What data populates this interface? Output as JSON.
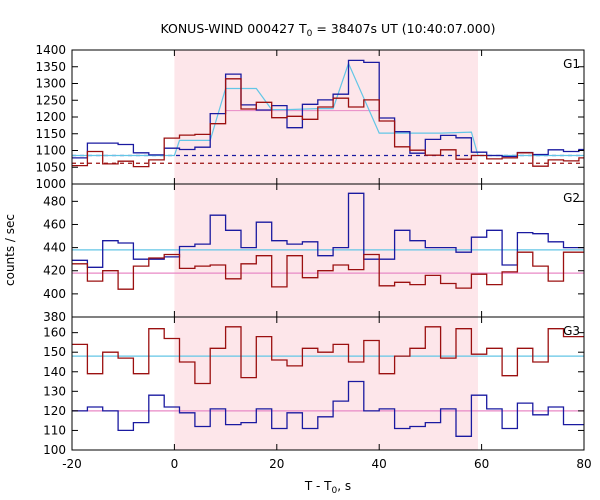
{
  "chart_data": {
    "type": "line",
    "title": "KONUS-WIND 000427 T",
    "title_sub": "0",
    "title_rest": " = 38407s UT (10:40:07.000)",
    "xlabel": "T - T",
    "xlabel_sub": "0",
    "xlabel_rest": ", s",
    "ylabel": "counts / sec",
    "xlim": [
      -20,
      80
    ],
    "xticks": [
      "-20",
      "0",
      "20",
      "40",
      "60",
      "80"
    ],
    "shaded_interval": [
      0,
      59.3
    ],
    "colors": {
      "blue": "#1a1aa0",
      "red": "#9b1010",
      "fit": "#63c6e6",
      "bg_line": "#e889c6",
      "shade": "#fde6ea"
    },
    "panels": [
      {
        "label": "G1",
        "ylim": [
          1000,
          1400
        ],
        "yticks": [
          "1000",
          "1050",
          "1100",
          "1150",
          "1200",
          "1250",
          "1300",
          "1350",
          "1400"
        ],
        "background_levels": {
          "blue": 1085,
          "red": 1062
        },
        "series": [
          {
            "color_key": "blue",
            "edges": [
              -20,
              -17,
              -14,
              -11,
              -8,
              -5,
              -2,
              1,
              4,
              7,
              10,
              13,
              16,
              19,
              22,
              25,
              28,
              31,
              34,
              37,
              40,
              43,
              46,
              49,
              52,
              55,
              58,
              61,
              64,
              67,
              70,
              73,
              76,
              79,
              80
            ],
            "values": [
              1078,
              1122,
              1122,
              1118,
              1093,
              1087,
              1107,
              1103,
              1110,
              1210,
              1328,
              1236,
              1221,
              1234,
              1168,
              1238,
              1251,
              1268,
              1369,
              1363,
              1197,
              1156,
              1092,
              1133,
              1145,
              1138,
              1095,
              1085,
              1082,
              1094,
              1088,
              1102,
              1097,
              1103
            ]
          },
          {
            "color_key": "red",
            "edges": [
              -20,
              -17,
              -14,
              -11,
              -8,
              -5,
              -2,
              1,
              4,
              7,
              10,
              13,
              16,
              19,
              22,
              25,
              28,
              31,
              34,
              37,
              40,
              43,
              46,
              49,
              52,
              55,
              58,
              61,
              64,
              67,
              70,
              73,
              76,
              79,
              80
            ],
            "values": [
              1055,
              1097,
              1060,
              1068,
              1052,
              1072,
              1137,
              1146,
              1148,
              1180,
              1314,
              1224,
              1244,
              1198,
              1202,
              1193,
              1230,
              1256,
              1230,
              1251,
              1188,
              1111,
              1101,
              1086,
              1102,
              1074,
              1085,
              1075,
              1078,
              1093,
              1053,
              1072,
              1069,
              1078
            ]
          }
        ],
        "fits": [
          {
            "x": [
              -20,
              0,
              1,
              7,
              10,
              16,
              19,
              22,
              28,
              31,
              34,
              40,
              46,
              52,
              58,
              59.3,
              80
            ],
            "y": [
              1085,
              1085,
              1130,
              1130,
              1285,
              1285,
              1222,
              1222,
              1225,
              1225,
              1360,
              1152,
              1152,
              1152,
              1155,
              1085,
              1085
            ]
          }
        ],
        "guide": {
          "x": [
            10,
            40
          ],
          "y": [
            1219,
            1219
          ]
        }
      },
      {
        "label": "G2",
        "ylim": [
          380,
          495
        ],
        "yticks": [
          "380",
          "400",
          "420",
          "440",
          "460",
          "480"
        ],
        "series": [
          {
            "color_key": "blue",
            "edges": [
              -20,
              -17,
              -14,
              -11,
              -8,
              -5,
              -2,
              1,
              4,
              7,
              10,
              13,
              16,
              19,
              22,
              25,
              28,
              31,
              34,
              37,
              40,
              43,
              46,
              49,
              52,
              55,
              58,
              61,
              64,
              67,
              70,
              73,
              76,
              79,
              80
            ],
            "values": [
              429,
              423,
              446,
              444,
              430,
              430,
              432,
              441,
              443,
              468,
              455,
              440,
              462,
              446,
              443,
              445,
              433,
              440,
              487,
              430,
              430,
              455,
              446,
              440,
              440,
              436,
              449,
              455,
              425,
              453,
              452,
              445,
              440,
              440
            ]
          },
          {
            "color_key": "red",
            "edges": [
              -20,
              -17,
              -14,
              -11,
              -8,
              -5,
              -2,
              1,
              4,
              7,
              10,
              13,
              16,
              19,
              22,
              25,
              28,
              31,
              34,
              37,
              40,
              43,
              46,
              49,
              52,
              55,
              58,
              61,
              64,
              67,
              70,
              73,
              76,
              79,
              80
            ],
            "values": [
              426,
              411,
              420,
              404,
              424,
              431,
              434,
              422,
              424,
              425,
              413,
              426,
              433,
              406,
              433,
              414,
              420,
              425,
              421,
              434,
              407,
              410,
              408,
              416,
              409,
              405,
              417,
              408,
              419,
              436,
              424,
              411,
              436,
              436
            ]
          }
        ],
        "fits": [
          {
            "x": [
              -20,
              80
            ],
            "y": [
              438,
              438
            ]
          },
          {
            "x": [
              -20,
              80
            ],
            "y": [
              418,
              418
            ]
          }
        ]
      },
      {
        "label": "G3",
        "ylim": [
          100,
          168
        ],
        "yticks": [
          "100",
          "110",
          "120",
          "130",
          "140",
          "150",
          "160"
        ],
        "series": [
          {
            "color_key": "blue",
            "edges": [
              -20,
              -17,
              -14,
              -11,
              -8,
              -5,
              -2,
              1,
              4,
              7,
              10,
              13,
              16,
              19,
              22,
              25,
              28,
              31,
              34,
              37,
              40,
              43,
              46,
              49,
              52,
              55,
              58,
              61,
              64,
              67,
              70,
              73,
              76,
              79,
              80
            ],
            "values": [
              120,
              122,
              120,
              110,
              114,
              128,
              122,
              119,
              112,
              121,
              113,
              114,
              121,
              111,
              119,
              111,
              117,
              125,
              135,
              120,
              121,
              111,
              112,
              114,
              121,
              107,
              128,
              121,
              111,
              124,
              118,
              122,
              113,
              113
            ]
          },
          {
            "color_key": "red",
            "edges": [
              -20,
              -17,
              -14,
              -11,
              -8,
              -5,
              -2,
              1,
              4,
              7,
              10,
              13,
              16,
              19,
              22,
              25,
              28,
              31,
              34,
              37,
              40,
              43,
              46,
              49,
              52,
              55,
              58,
              61,
              64,
              67,
              70,
              73,
              76,
              79,
              80
            ],
            "values": [
              154,
              139,
              150,
              147,
              139,
              162,
              157,
              145,
              134,
              152,
              163,
              137,
              158,
              146,
              143,
              152,
              150,
              154,
              145,
              156,
              139,
              148,
              152,
              163,
              147,
              162,
              149,
              152,
              138,
              152,
              145,
              162,
              158,
              158
            ]
          }
        ],
        "fits": [
          {
            "x": [
              -20,
              80
            ],
            "y": [
              148,
              148
            ]
          },
          {
            "x": [
              -20,
              80
            ],
            "y": [
              120,
              120
            ]
          }
        ]
      }
    ]
  }
}
